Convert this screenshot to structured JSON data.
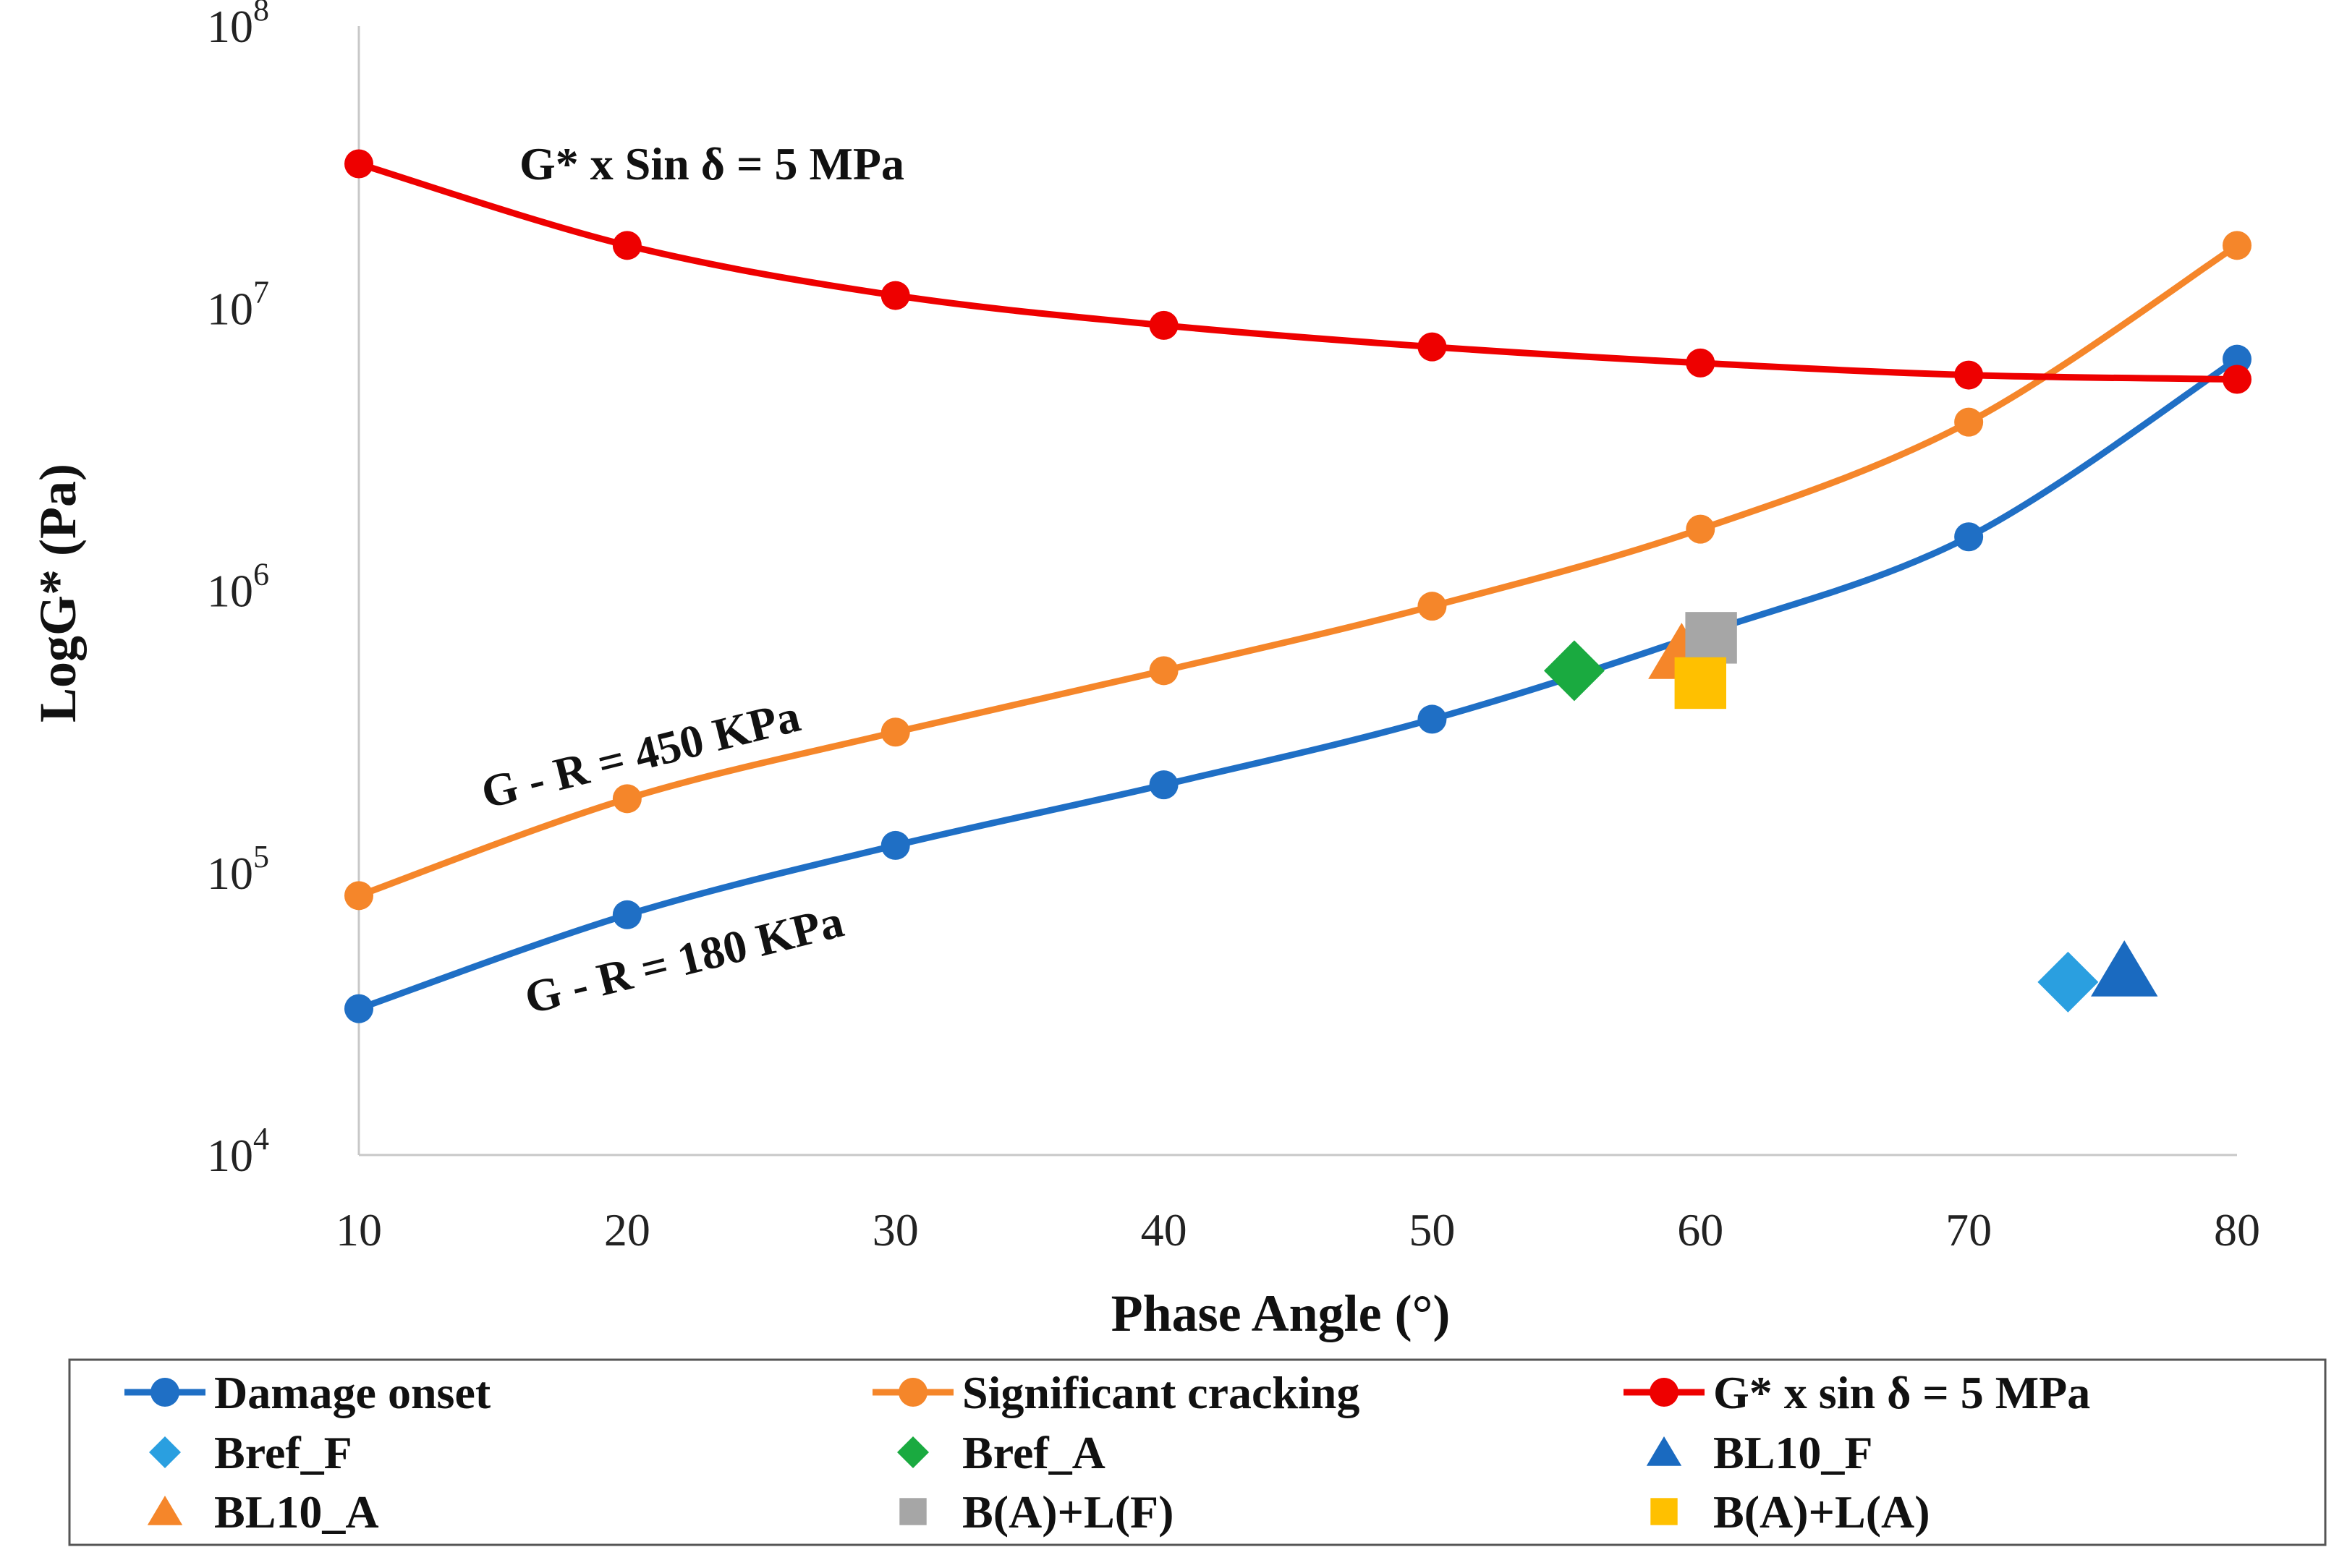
{
  "chart_data": {
    "type": "line",
    "title": "",
    "xlabel": "Phase Angle (°)",
    "ylabel": "LogG* (Pa)",
    "xlim": [
      10,
      80
    ],
    "ylim_log10": [
      4,
      8
    ],
    "x_ticks": [
      "10",
      "20",
      "30",
      "40",
      "50",
      "60",
      "70",
      "80"
    ],
    "y_ticks": [
      {
        "base": "10",
        "exp": "4"
      },
      {
        "base": "10",
        "exp": "5"
      },
      {
        "base": "10",
        "exp": "6"
      },
      {
        "base": "10",
        "exp": "7"
      },
      {
        "base": "10",
        "exp": "8"
      }
    ],
    "annotations": [
      "G* x Sin δ = 5 MPa",
      "G - R = 450 KPa",
      "G - R = 180 KPa"
    ],
    "series": [
      {
        "name": "Damage onset",
        "kind": "line",
        "color": "#1f6fc5",
        "x": [
          10,
          20,
          30,
          40,
          50,
          60,
          70,
          80
        ],
        "y": [
          33000,
          71000,
          125000,
          205000,
          350000,
          700000,
          1550000,
          6600000
        ]
      },
      {
        "name": "Significant cracking",
        "kind": "line",
        "color": "#f5862a",
        "x": [
          10,
          20,
          30,
          40,
          50,
          60,
          70,
          80
        ],
        "y": [
          83000,
          183000,
          315000,
          520000,
          880000,
          1650000,
          3950000,
          16700000
        ]
      },
      {
        "name": "G* x sin δ = 5 MPa",
        "kind": "line",
        "color": "#ee0000",
        "x": [
          10,
          20,
          30,
          40,
          50,
          60,
          70,
          80
        ],
        "y": [
          32500000,
          16700000,
          11100000,
          8700000,
          7300000,
          6400000,
          5800000,
          5600000
        ]
      },
      {
        "name": "Bref_F",
        "kind": "point",
        "marker": "diamond",
        "color": "#2a9fe0",
        "x": [
          73.7
        ],
        "y": [
          41000
        ]
      },
      {
        "name": "Bref_A",
        "kind": "point",
        "marker": "diamond",
        "color": "#1aaa40",
        "x": [
          55.3
        ],
        "y": [
          520000
        ]
      },
      {
        "name": "BL10_F",
        "kind": "point",
        "marker": "triangle",
        "color": "#1a6ac0",
        "x": [
          75.8
        ],
        "y": [
          45000
        ]
      },
      {
        "name": "BL10_A",
        "kind": "point",
        "marker": "triangle",
        "color": "#f5862a",
        "x": [
          59.3
        ],
        "y": [
          600000
        ]
      },
      {
        "name": "B(A)+L(F)",
        "kind": "point",
        "marker": "square",
        "color": "#a6a6a6",
        "x": [
          60.4
        ],
        "y": [
          680000
        ]
      },
      {
        "name": "B(A)+L(A)",
        "kind": "point",
        "marker": "square",
        "color": "#ffc000",
        "x": [
          60.0
        ],
        "y": [
          470000
        ]
      }
    ],
    "legend_position": "bottom"
  }
}
